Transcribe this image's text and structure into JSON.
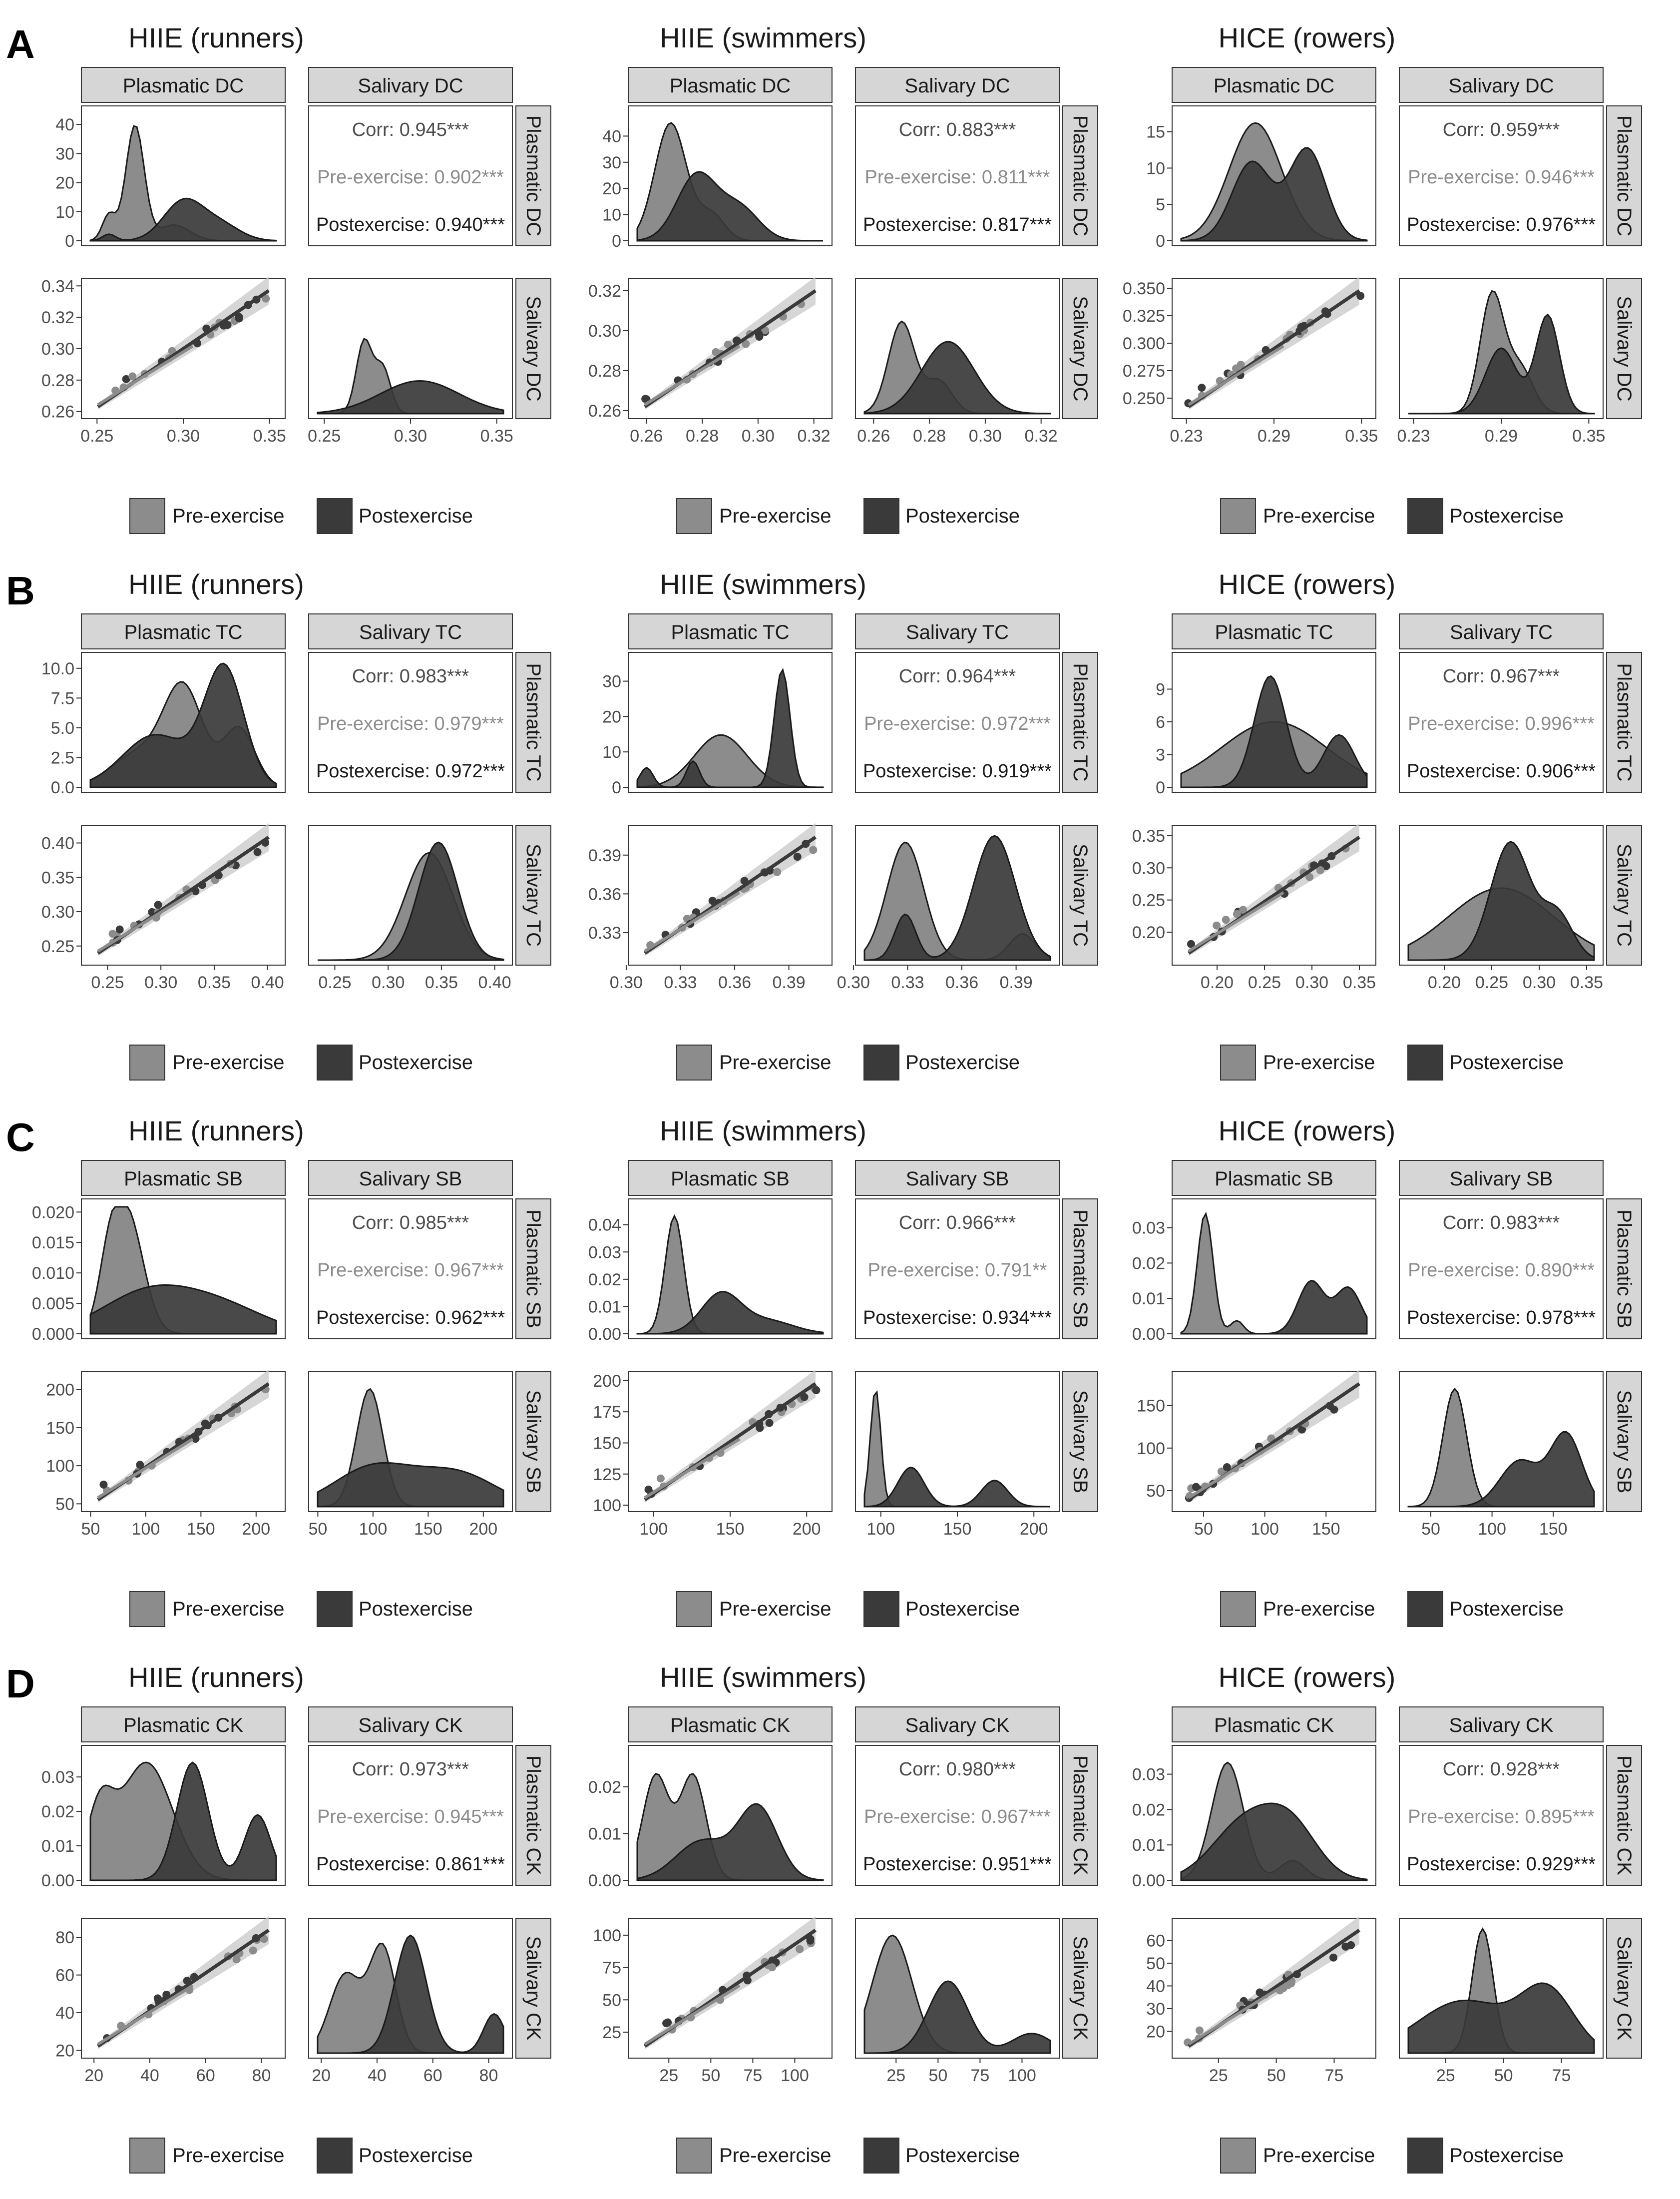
{
  "legend": {
    "pre": "Pre-exercise",
    "post": "Postexercise"
  },
  "colors": {
    "pre": "#8c8c8c",
    "post": "#3a3a3a",
    "stroke": "#1a1a1a",
    "strip": "#d6d6d6",
    "corr_all": "#4d4d4d",
    "corr_pre": "#8c8c8c",
    "corr_post": "#1a1a1a"
  },
  "corr_labels": {
    "all": "Corr: ",
    "pre": "Pre-exercise: ",
    "post": "Postexercise: "
  },
  "chart_data": [
    {
      "panel": "A",
      "title": "HIIE (runners)",
      "type": "scatter-matrix",
      "var1": "Plasmatic DC",
      "var2": "Salivary DC",
      "corr": {
        "all": "0.945***",
        "pre": "0.902***",
        "post": "0.940***"
      },
      "ylim_density": [
        0,
        45
      ],
      "yticks_density": [
        "0",
        "10",
        "20",
        "30",
        "40"
      ],
      "yticks_density_v": [
        0,
        10,
        20,
        30,
        40
      ],
      "xlim": [
        0.245,
        0.355
      ],
      "xticks": [
        "0.25",
        "0.30",
        "0.35"
      ],
      "xticks_v": [
        0.25,
        0.3,
        0.35
      ],
      "ylim_scatter": [
        0.258,
        0.342
      ],
      "yticks_scatter": [
        "0.26",
        "0.28",
        "0.30",
        "0.32",
        "0.34"
      ],
      "yticks_scatter_v": [
        0.26,
        0.28,
        0.3,
        0.32,
        0.34
      ]
    },
    {
      "panel": "A",
      "title": "HIIE (swimmers)",
      "type": "scatter-matrix",
      "var1": "Plasmatic DC",
      "var2": "Salivary DC",
      "corr": {
        "all": "0.883***",
        "pre": "0.811***",
        "post": "0.817***"
      },
      "ylim_density": [
        0,
        50
      ],
      "yticks_density": [
        "0",
        "10",
        "20",
        "30",
        "40"
      ],
      "yticks_density_v": [
        0,
        10,
        20,
        30,
        40
      ],
      "xlim": [
        0.256,
        0.324
      ],
      "xticks": [
        "0.26",
        "0.28",
        "0.30",
        "0.32"
      ],
      "xticks_v": [
        0.26,
        0.28,
        0.3,
        0.32
      ],
      "ylim_scatter": [
        0.258,
        0.324
      ],
      "yticks_scatter": [
        "0.26",
        "0.28",
        "0.30",
        "0.32"
      ],
      "yticks_scatter_v": [
        0.26,
        0.28,
        0.3,
        0.32
      ]
    },
    {
      "panel": "A",
      "title": "HICE (rowers)",
      "type": "scatter-matrix",
      "var1": "Plasmatic DC",
      "var2": "Salivary DC",
      "corr": {
        "all": "0.959***",
        "pre": "0.946***",
        "post": "0.976***"
      },
      "ylim_density": [
        0,
        18
      ],
      "yticks_density": [
        "0",
        "5",
        "10",
        "15"
      ],
      "yticks_density_v": [
        0,
        5,
        10,
        15
      ],
      "xlim": [
        0.225,
        0.355
      ],
      "xticks": [
        "0.23",
        "0.29",
        "0.35"
      ],
      "xticks_v": [
        0.23,
        0.29,
        0.35
      ],
      "ylim_scatter": [
        0.235,
        0.355
      ],
      "yticks_scatter": [
        "0.250",
        "0.275",
        "0.300",
        "0.325",
        "0.350"
      ],
      "yticks_scatter_v": [
        0.25,
        0.275,
        0.3,
        0.325,
        0.35
      ]
    },
    {
      "panel": "B",
      "title": "HIIE (runners)",
      "type": "scatter-matrix",
      "var1": "Plasmatic TC",
      "var2": "Salivary TC",
      "corr": {
        "all": "0.983***",
        "pre": "0.979***",
        "post": "0.972***"
      },
      "ylim_density": [
        0,
        11
      ],
      "yticks_density": [
        "0.0",
        "2.5",
        "5.0",
        "7.5",
        "10.0"
      ],
      "yticks_density_v": [
        0,
        2.5,
        5,
        7.5,
        10
      ],
      "xlim": [
        0.232,
        0.41
      ],
      "xticks": [
        "0.25",
        "0.30",
        "0.35",
        "0.40"
      ],
      "xticks_v": [
        0.25,
        0.3,
        0.35,
        0.4
      ],
      "ylim_scatter": [
        0.228,
        0.42
      ],
      "yticks_scatter": [
        "0.25",
        "0.30",
        "0.35",
        "0.40"
      ],
      "yticks_scatter_v": [
        0.25,
        0.3,
        0.35,
        0.4
      ]
    },
    {
      "panel": "B",
      "title": "HIIE (swimmers)",
      "type": "scatter-matrix",
      "var1": "Plasmatic TC",
      "var2": "Salivary TC",
      "corr": {
        "all": "0.964***",
        "pre": "0.972***",
        "post": "0.919***"
      },
      "ylim_density": [
        0,
        37
      ],
      "yticks_density": [
        "0",
        "10",
        "20",
        "30"
      ],
      "yticks_density_v": [
        0,
        10,
        20,
        30
      ],
      "xlim": [
        0.305,
        0.41
      ],
      "xticks": [
        "0.30",
        "0.33",
        "0.36",
        "0.39"
      ],
      "xticks_v": [
        0.3,
        0.33,
        0.36,
        0.39
      ],
      "ylim_scatter": [
        0.308,
        0.41
      ],
      "yticks_scatter": [
        "0.33",
        "0.36",
        "0.39"
      ],
      "yticks_scatter_v": [
        0.33,
        0.36,
        0.39
      ]
    },
    {
      "panel": "B",
      "title": "HICE (rowers)",
      "type": "scatter-matrix",
      "var1": "Plasmatic TC",
      "var2": "Salivary TC",
      "corr": {
        "all": "0.967***",
        "pre": "0.996***",
        "post": "0.906***"
      },
      "ylim_density": [
        0,
        12
      ],
      "yticks_density": [
        "0",
        "3",
        "6",
        "9"
      ],
      "yticks_density_v": [
        0,
        3,
        6,
        9
      ],
      "xlim": [
        0.16,
        0.36
      ],
      "xticks": [
        "0.20",
        "0.25",
        "0.30",
        "0.35"
      ],
      "xticks_v": [
        0.2,
        0.25,
        0.3,
        0.35
      ],
      "ylim_scatter": [
        0.155,
        0.36
      ],
      "yticks_scatter": [
        "0.20",
        "0.25",
        "0.30",
        "0.35"
      ],
      "yticks_scatter_v": [
        0.2,
        0.25,
        0.3,
        0.35
      ]
    },
    {
      "panel": "C",
      "title": "HIIE (runners)",
      "type": "scatter-matrix",
      "var1": "Plasmatic SB",
      "var2": "Salivary SB",
      "corr": {
        "all": "0.985***",
        "pre": "0.967***",
        "post": "0.962***"
      },
      "ylim_density": [
        0,
        0.0215
      ],
      "yticks_density": [
        "0.000",
        "0.005",
        "0.010",
        "0.015",
        "0.020"
      ],
      "yticks_density_v": [
        0,
        0.005,
        0.01,
        0.015,
        0.02
      ],
      "xlim": [
        48,
        220
      ],
      "xticks": [
        "50",
        "100",
        "150",
        "200"
      ],
      "xticks_v": [
        50,
        100,
        150,
        200
      ],
      "ylim_scatter": [
        45,
        218
      ],
      "yticks_scatter": [
        "50",
        "100",
        "150",
        "200"
      ],
      "yticks_scatter_v": [
        50,
        100,
        150,
        200
      ]
    },
    {
      "panel": "C",
      "title": "HIIE (swimmers)",
      "type": "scatter-matrix",
      "var1": "Plasmatic SB",
      "var2": "Salivary SB",
      "corr": {
        "all": "0.966***",
        "pre": "0.791**",
        "post": "0.934***"
      },
      "ylim_density": [
        0,
        0.048
      ],
      "yticks_density": [
        "0.00",
        "0.01",
        "0.02",
        "0.03",
        "0.04"
      ],
      "yticks_density_v": [
        0,
        0.01,
        0.02,
        0.03,
        0.04
      ],
      "xlim": [
        88,
        212
      ],
      "xticks": [
        "100",
        "150",
        "200"
      ],
      "xticks_v": [
        100,
        150,
        200
      ],
      "ylim_scatter": [
        98,
        204
      ],
      "yticks_scatter": [
        "100",
        "125",
        "150",
        "175",
        "200"
      ],
      "yticks_scatter_v": [
        100,
        125,
        150,
        175,
        200
      ]
    },
    {
      "panel": "C",
      "title": "HICE (rowers)",
      "type": "scatter-matrix",
      "var1": "Plasmatic SB",
      "var2": "Salivary SB",
      "corr": {
        "all": "0.983***",
        "pre": "0.890***",
        "post": "0.978***"
      },
      "ylim_density": [
        0,
        0.037
      ],
      "yticks_density": [
        "0.00",
        "0.01",
        "0.02",
        "0.03"
      ],
      "yticks_density_v": [
        0,
        0.01,
        0.02,
        0.03
      ],
      "xlim": [
        30,
        185
      ],
      "xticks": [
        "50",
        "100",
        "150"
      ],
      "xticks_v": [
        50,
        100,
        150
      ],
      "ylim_scatter": [
        30,
        185
      ],
      "yticks_scatter": [
        "50",
        "100",
        "150"
      ],
      "yticks_scatter_v": [
        50,
        100,
        150
      ]
    },
    {
      "panel": "D",
      "title": "HIIE (runners)",
      "type": "scatter-matrix",
      "var1": "Plasmatic CK",
      "var2": "Salivary CK",
      "corr": {
        "all": "0.973***",
        "pre": "0.945***",
        "post": "0.861***"
      },
      "ylim_density": [
        0,
        0.038
      ],
      "yticks_density": [
        "0.00",
        "0.01",
        "0.02",
        "0.03"
      ],
      "yticks_density_v": [
        0,
        0.01,
        0.02,
        0.03
      ],
      "xlim": [
        18,
        86
      ],
      "xticks": [
        "20",
        "40",
        "60",
        "80"
      ],
      "xticks_v": [
        20,
        40,
        60,
        80
      ],
      "ylim_scatter": [
        18,
        88
      ],
      "yticks_scatter": [
        "20",
        "40",
        "60",
        "80"
      ],
      "yticks_scatter_v": [
        20,
        40,
        60,
        80
      ]
    },
    {
      "panel": "D",
      "title": "HIIE (swimmers)",
      "type": "scatter-matrix",
      "var1": "Plasmatic CK",
      "var2": "Salivary CK",
      "corr": {
        "all": "0.980***",
        "pre": "0.967***",
        "post": "0.951***"
      },
      "ylim_density": [
        0,
        0.028
      ],
      "yticks_density": [
        "0.00",
        "0.01",
        "0.02"
      ],
      "yticks_density_v": [
        0,
        0.01,
        0.02
      ],
      "xlim": [
        5,
        118
      ],
      "xticks": [
        "25",
        "50",
        "75",
        "100"
      ],
      "xticks_v": [
        25,
        50,
        75,
        100
      ],
      "ylim_scatter": [
        8,
        110
      ],
      "yticks_scatter": [
        "25",
        "50",
        "75",
        "100"
      ],
      "yticks_scatter_v": [
        25,
        50,
        75,
        100
      ]
    },
    {
      "panel": "D",
      "title": "HICE (rowers)",
      "type": "scatter-matrix",
      "var1": "Plasmatic CK",
      "var2": "Salivary CK",
      "corr": {
        "all": "0.928***",
        "pre": "0.895***",
        "post": "0.929***"
      },
      "ylim_density": [
        0,
        0.037
      ],
      "yticks_density": [
        "0.00",
        "0.01",
        "0.02",
        "0.03"
      ],
      "yticks_density_v": [
        0,
        0.01,
        0.02,
        0.03
      ],
      "xlim": [
        8,
        90
      ],
      "xticks": [
        "25",
        "50",
        "75"
      ],
      "xticks_v": [
        25,
        50,
        75
      ],
      "ylim_scatter": [
        10,
        68
      ],
      "yticks_scatter": [
        "20",
        "30",
        "40",
        "50",
        "60"
      ],
      "yticks_scatter_v": [
        20,
        30,
        40,
        50,
        60
      ]
    }
  ]
}
